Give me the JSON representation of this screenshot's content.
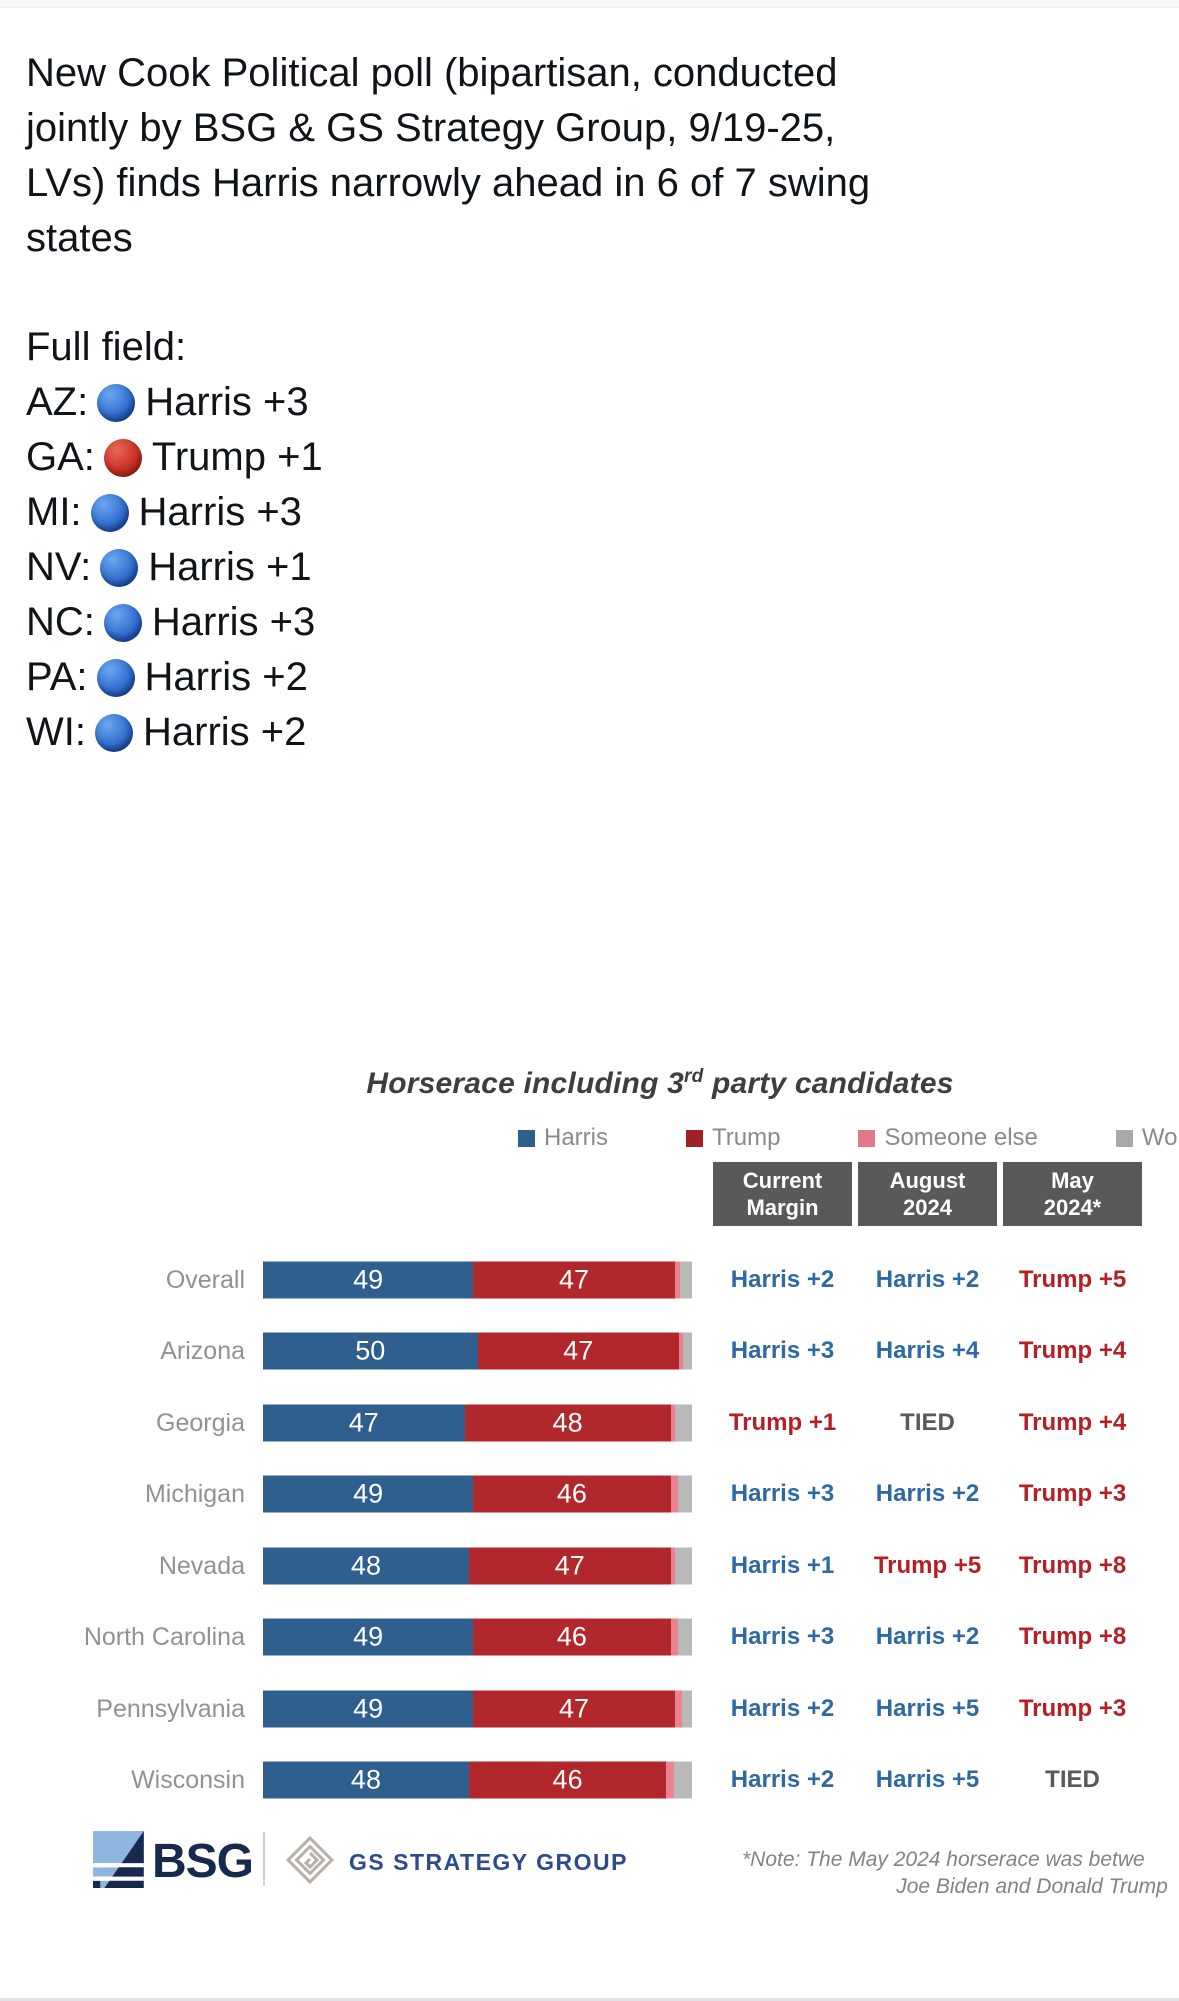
{
  "post": {
    "lines": [
      "New Cook Political poll (bipartisan, conducted",
      "jointly by BSG & GS Strategy Group, 9/19-25,",
      "LVs) finds Harris narrowly ahead in 6 of 7 swing",
      "states"
    ],
    "full_field_label": "Full field:",
    "full_field": [
      {
        "state": "AZ:",
        "dot": "blue",
        "result": "Harris +3"
      },
      {
        "state": "GA:",
        "dot": "red",
        "result": "Trump +1"
      },
      {
        "state": "MI:",
        "dot": "blue",
        "result": "Harris +3"
      },
      {
        "state": "NV:",
        "dot": "blue",
        "result": "Harris +1"
      },
      {
        "state": "NC:",
        "dot": "blue",
        "result": "Harris +3"
      },
      {
        "state": "PA:",
        "dot": "blue",
        "result": "Harris +2"
      },
      {
        "state": "WI:",
        "dot": "blue",
        "result": "Harris +2"
      }
    ]
  },
  "chart_data": {
    "type": "bar",
    "title": "Horserace including 3rd party candidates",
    "title_base": "Horserace including 3",
    "title_sup": "rd",
    "title_rest": " party candidates",
    "legend": [
      {
        "label": "Harris",
        "color": "#2F5F8F"
      },
      {
        "label": "Trump",
        "color": "#9F2025"
      },
      {
        "label": "Someone else",
        "color": "#E0798A"
      },
      {
        "label": "Wo",
        "color": "#A9A9A9",
        "truncated_at_image_edge": true
      }
    ],
    "column_headers": [
      {
        "line1": "Current",
        "line2": "Margin"
      },
      {
        "line1": "August",
        "line2": "2024"
      },
      {
        "line1": "May",
        "line2": "2024*"
      }
    ],
    "axis_range": [
      0,
      100
    ],
    "grid": false,
    "legend_position": "top",
    "rows": [
      {
        "label": "Overall",
        "harris": 49,
        "trump": 47,
        "someone_else": 1.3,
        "wont_vote": 2.7,
        "current": {
          "text": "Harris +2",
          "type": "harris"
        },
        "august": {
          "text": "Harris +2",
          "type": "harris"
        },
        "may": {
          "text": "Trump +5",
          "type": "trump"
        }
      },
      {
        "label": "Arizona",
        "harris": 50,
        "trump": 47,
        "someone_else": 1.0,
        "wont_vote": 2.0,
        "current": {
          "text": "Harris +3",
          "type": "harris"
        },
        "august": {
          "text": "Harris +4",
          "type": "harris"
        },
        "may": {
          "text": "Trump +4",
          "type": "trump"
        }
      },
      {
        "label": "Georgia",
        "harris": 47,
        "trump": 48,
        "someone_else": 1.0,
        "wont_vote": 4.0,
        "current": {
          "text": "Trump +1",
          "type": "trump"
        },
        "august": {
          "text": "TIED",
          "type": "tied"
        },
        "may": {
          "text": "Trump +4",
          "type": "trump"
        }
      },
      {
        "label": "Michigan",
        "harris": 49,
        "trump": 46,
        "someone_else": 1.8,
        "wont_vote": 3.2,
        "current": {
          "text": "Harris +3",
          "type": "harris"
        },
        "august": {
          "text": "Harris +2",
          "type": "harris"
        },
        "may": {
          "text": "Trump +3",
          "type": "trump"
        }
      },
      {
        "label": "Nevada",
        "harris": 48,
        "trump": 47,
        "someone_else": 1.0,
        "wont_vote": 4.0,
        "current": {
          "text": "Harris +1",
          "type": "harris"
        },
        "august": {
          "text": "Trump +5",
          "type": "trump"
        },
        "may": {
          "text": "Trump +8",
          "type": "trump"
        }
      },
      {
        "label": "North Carolina",
        "harris": 49,
        "trump": 46,
        "someone_else": 1.8,
        "wont_vote": 3.2,
        "current": {
          "text": "Harris +3",
          "type": "harris"
        },
        "august": {
          "text": "Harris +2",
          "type": "harris"
        },
        "may": {
          "text": "Trump +8",
          "type": "trump"
        }
      },
      {
        "label": "Pennsylvania",
        "harris": 49,
        "trump": 47,
        "someone_else": 1.6,
        "wont_vote": 2.4,
        "current": {
          "text": "Harris +2",
          "type": "harris"
        },
        "august": {
          "text": "Harris +5",
          "type": "harris"
        },
        "may": {
          "text": "Trump +3",
          "type": "trump"
        }
      },
      {
        "label": "Wisconsin",
        "harris": 48,
        "trump": 46,
        "someone_else": 1.8,
        "wont_vote": 4.2,
        "current": {
          "text": "Harris +2",
          "type": "harris"
        },
        "august": {
          "text": "Harris +5",
          "type": "harris"
        },
        "may": {
          "text": "TIED",
          "type": "tied"
        }
      }
    ],
    "colors": {
      "harris_bar": "#2F5F8F",
      "trump_bar": "#B1272B",
      "someone_else_bar": "#E9838F",
      "wont_vote_bar": "#B9B9B9",
      "header_bg": "#58595B",
      "harris_text": "#2D6AA3",
      "trump_text": "#B42025",
      "tied_text": "#58595B"
    }
  },
  "footer": {
    "bsg_label": "BSG",
    "gs_label": "GS STRATEGY GROUP",
    "note_line1": "*Note: The May 2024 horserace was betwe",
    "note_line2": "Joe Biden and Donald Trump"
  }
}
